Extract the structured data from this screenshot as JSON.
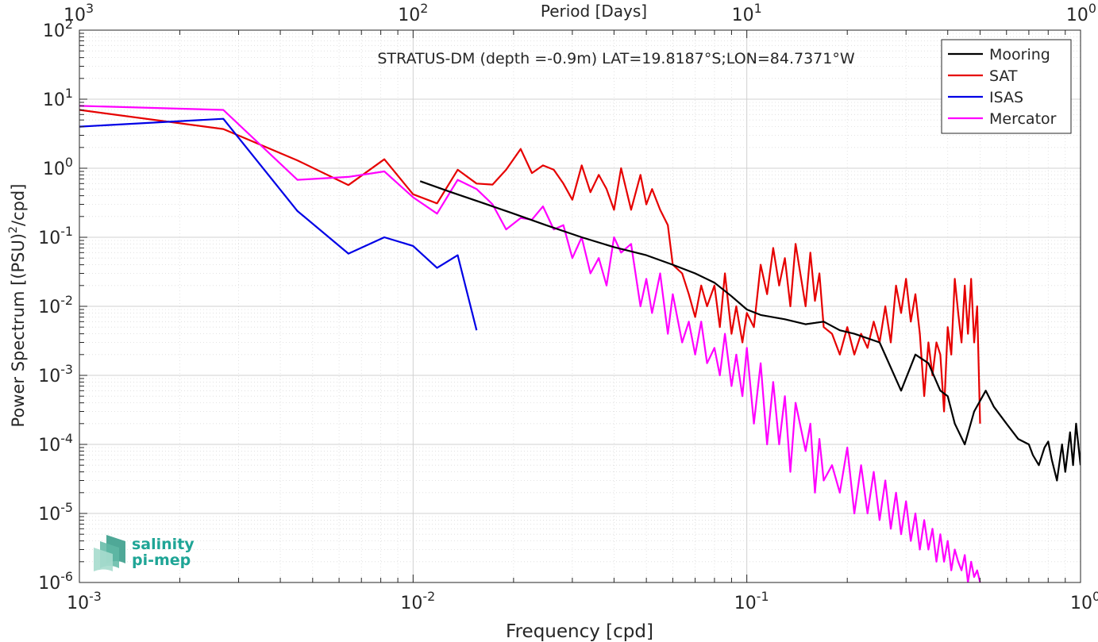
{
  "chart_data": {
    "type": "line",
    "title": "STRATUS-DM (depth =-0.9m) LAT=19.8187°S;LON=84.7371°W",
    "xlabel": "Frequency [cpd]",
    "ylabel": "Power Spectrum [(PSU)²/cpd]",
    "ylabel_main": "Power Spectrum [(PSU)",
    "ylabel_sup": "2",
    "ylabel_tail": "/cpd]",
    "x2label": "Period [Days]",
    "x_scale": "log",
    "y_scale": "log",
    "xlim": [
      0.001,
      1
    ],
    "ylim": [
      1e-06,
      100
    ],
    "grid": true,
    "legend_position": "top-right",
    "x_ticks": [
      {
        "value": 0.001,
        "base": "10",
        "exp": "-3"
      },
      {
        "value": 0.01,
        "base": "10",
        "exp": "-2"
      },
      {
        "value": 0.1,
        "base": "10",
        "exp": "-1"
      },
      {
        "value": 1,
        "base": "10",
        "exp": "0"
      }
    ],
    "y_ticks": [
      {
        "value": 1e-06,
        "base": "10",
        "exp": "-6"
      },
      {
        "value": 1e-05,
        "base": "10",
        "exp": "-5"
      },
      {
        "value": 0.0001,
        "base": "10",
        "exp": "-4"
      },
      {
        "value": 0.001,
        "base": "10",
        "exp": "-3"
      },
      {
        "value": 0.01,
        "base": "10",
        "exp": "-2"
      },
      {
        "value": 0.1,
        "base": "10",
        "exp": "-1"
      },
      {
        "value": 1,
        "base": "10",
        "exp": "0"
      },
      {
        "value": 10,
        "base": "10",
        "exp": "1"
      },
      {
        "value": 100,
        "base": "10",
        "exp": "2"
      }
    ],
    "x2_ticks": [
      {
        "freq": 0.001,
        "base": "10",
        "exp": "3"
      },
      {
        "freq": 0.01,
        "base": "10",
        "exp": "2"
      },
      {
        "freq": 0.1,
        "base": "10",
        "exp": "1"
      },
      {
        "freq": 1,
        "base": "10",
        "exp": "0"
      }
    ],
    "series": [
      {
        "name": "Mooring",
        "color": "#000000",
        "x": [
          0.0105,
          0.013,
          0.016,
          0.02,
          0.025,
          0.032,
          0.04,
          0.05,
          0.06,
          0.07,
          0.08,
          0.09,
          0.1,
          0.11,
          0.13,
          0.15,
          0.17,
          0.19,
          0.21,
          0.25,
          0.29,
          0.32,
          0.35,
          0.38,
          0.4,
          0.42,
          0.45,
          0.48,
          0.52,
          0.55,
          0.6,
          0.65,
          0.7,
          0.72,
          0.75,
          0.78,
          0.8,
          0.82,
          0.85,
          0.88,
          0.9,
          0.93,
          0.95,
          0.97,
          1.0
        ],
        "y": [
          0.65,
          0.45,
          0.32,
          0.22,
          0.15,
          0.1,
          0.072,
          0.055,
          0.04,
          0.03,
          0.022,
          0.014,
          0.009,
          0.0075,
          0.0065,
          0.0055,
          0.006,
          0.0045,
          0.004,
          0.003,
          0.0006,
          0.002,
          0.0015,
          0.0006,
          0.0005,
          0.0002,
          0.0001,
          0.0003,
          0.0006,
          0.00035,
          0.0002,
          0.00012,
          0.0001,
          7e-05,
          5e-05,
          9e-05,
          0.00011,
          6e-05,
          3e-05,
          0.0001,
          4e-05,
          0.00015,
          5e-05,
          0.0002,
          5e-05
        ]
      },
      {
        "name": "SAT",
        "color": "#e60000",
        "x": [
          0.001,
          0.0027,
          0.0045,
          0.0064,
          0.0082,
          0.01,
          0.0118,
          0.0136,
          0.0155,
          0.0173,
          0.019,
          0.021,
          0.0227,
          0.0245,
          0.0264,
          0.0282,
          0.03,
          0.032,
          0.034,
          0.036,
          0.038,
          0.04,
          0.042,
          0.045,
          0.048,
          0.05,
          0.052,
          0.055,
          0.058,
          0.06,
          0.064,
          0.067,
          0.07,
          0.073,
          0.076,
          0.08,
          0.083,
          0.086,
          0.09,
          0.093,
          0.097,
          0.1,
          0.105,
          0.11,
          0.115,
          0.12,
          0.125,
          0.13,
          0.135,
          0.14,
          0.15,
          0.155,
          0.16,
          0.165,
          0.17,
          0.18,
          0.19,
          0.2,
          0.21,
          0.22,
          0.23,
          0.24,
          0.25,
          0.26,
          0.27,
          0.28,
          0.29,
          0.3,
          0.31,
          0.32,
          0.33,
          0.34,
          0.35,
          0.36,
          0.37,
          0.38,
          0.39,
          0.4,
          0.41,
          0.42,
          0.43,
          0.44,
          0.45,
          0.46,
          0.47,
          0.48,
          0.49,
          0.5
        ],
        "y": [
          7.0,
          3.7,
          1.3,
          0.57,
          1.35,
          0.42,
          0.31,
          0.95,
          0.6,
          0.58,
          0.95,
          1.9,
          0.85,
          1.1,
          0.95,
          0.6,
          0.35,
          1.1,
          0.45,
          0.8,
          0.5,
          0.25,
          1.0,
          0.25,
          0.8,
          0.3,
          0.5,
          0.25,
          0.15,
          0.04,
          0.03,
          0.015,
          0.007,
          0.02,
          0.01,
          0.02,
          0.005,
          0.03,
          0.004,
          0.01,
          0.003,
          0.008,
          0.005,
          0.04,
          0.015,
          0.07,
          0.02,
          0.05,
          0.01,
          0.08,
          0.01,
          0.06,
          0.012,
          0.03,
          0.005,
          0.004,
          0.002,
          0.005,
          0.002,
          0.004,
          0.0025,
          0.006,
          0.003,
          0.01,
          0.003,
          0.02,
          0.008,
          0.025,
          0.006,
          0.015,
          0.004,
          0.0005,
          0.003,
          0.001,
          0.003,
          0.002,
          0.0003,
          0.005,
          0.002,
          0.025,
          0.008,
          0.003,
          0.02,
          0.004,
          0.025,
          0.003,
          0.01,
          0.0002
        ]
      },
      {
        "name": "ISAS",
        "color": "#0000e6",
        "x": [
          0.001,
          0.0027,
          0.0045,
          0.0064,
          0.0082,
          0.01,
          0.0118,
          0.0136,
          0.0155
        ],
        "y": [
          4.0,
          5.2,
          0.24,
          0.058,
          0.1,
          0.075,
          0.036,
          0.055,
          0.0045
        ]
      },
      {
        "name": "Mercator",
        "color": "#ff00ff",
        "x": [
          0.001,
          0.0027,
          0.0045,
          0.0064,
          0.0082,
          0.01,
          0.0118,
          0.0136,
          0.0155,
          0.0173,
          0.019,
          0.021,
          0.0227,
          0.0245,
          0.0264,
          0.0282,
          0.03,
          0.032,
          0.034,
          0.036,
          0.038,
          0.04,
          0.042,
          0.045,
          0.048,
          0.05,
          0.052,
          0.055,
          0.058,
          0.06,
          0.064,
          0.067,
          0.07,
          0.073,
          0.076,
          0.08,
          0.083,
          0.086,
          0.09,
          0.093,
          0.097,
          0.1,
          0.105,
          0.11,
          0.115,
          0.12,
          0.125,
          0.13,
          0.135,
          0.14,
          0.15,
          0.155,
          0.16,
          0.165,
          0.17,
          0.18,
          0.19,
          0.2,
          0.21,
          0.22,
          0.23,
          0.24,
          0.25,
          0.26,
          0.27,
          0.28,
          0.29,
          0.3,
          0.31,
          0.32,
          0.33,
          0.34,
          0.35,
          0.36,
          0.37,
          0.38,
          0.39,
          0.4,
          0.41,
          0.42,
          0.43,
          0.44,
          0.45,
          0.46,
          0.47,
          0.48,
          0.49,
          0.5
        ],
        "y": [
          8.0,
          7.0,
          0.68,
          0.75,
          0.9,
          0.38,
          0.22,
          0.68,
          0.5,
          0.3,
          0.13,
          0.19,
          0.18,
          0.28,
          0.13,
          0.15,
          0.05,
          0.1,
          0.03,
          0.05,
          0.02,
          0.1,
          0.06,
          0.08,
          0.01,
          0.025,
          0.008,
          0.03,
          0.004,
          0.015,
          0.003,
          0.006,
          0.002,
          0.006,
          0.0015,
          0.0025,
          0.001,
          0.004,
          0.0007,
          0.002,
          0.0005,
          0.0025,
          0.0002,
          0.0015,
          0.0001,
          0.0008,
          0.0001,
          0.0005,
          4e-05,
          0.0004,
          8e-05,
          0.0002,
          2e-05,
          0.00012,
          3e-05,
          5e-05,
          2e-05,
          9e-05,
          1e-05,
          5e-05,
          1e-05,
          4e-05,
          8e-06,
          3e-05,
          6e-06,
          2e-05,
          5e-06,
          1.5e-05,
          4e-06,
          1e-05,
          3e-06,
          8e-06,
          3e-06,
          6e-06,
          2e-06,
          5e-06,
          2e-06,
          4e-06,
          1.5e-06,
          3e-06,
          2e-06,
          1.5e-06,
          2.5e-06,
          1e-06,
          2e-06,
          1.2e-06,
          1.5e-06,
          1e-06
        ]
      }
    ]
  },
  "logo": {
    "line1": "salinity",
    "line2": "pi-mep",
    "color": "#1fa596"
  }
}
